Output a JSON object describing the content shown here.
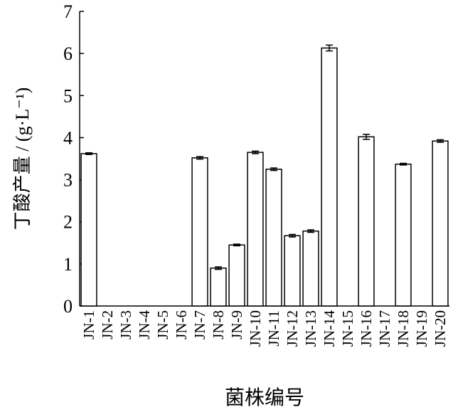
{
  "chart_data": {
    "type": "bar",
    "y_label": "丁酸产量 / (g·L⁻¹)",
    "x_label": "菌株编号",
    "categories": [
      "JN-1",
      "JN-2",
      "JN-3",
      "JN-4",
      "JN-5",
      "JN-6",
      "JN-7",
      "JN-8",
      "JN-9",
      "JN-10",
      "JN-11",
      "JN-12",
      "JN-13",
      "JN-14",
      "JN-15",
      "JN-16",
      "JN-17",
      "JN-18",
      "JN-19",
      "JN-20"
    ],
    "values": [
      3.62,
      0,
      0,
      0,
      0,
      0,
      3.52,
      0.9,
      1.45,
      3.65,
      3.25,
      1.67,
      1.78,
      6.13,
      0,
      4.02,
      0,
      3.37,
      0,
      3.92
    ],
    "errors": [
      0.02,
      0,
      0,
      0,
      0,
      0,
      0.03,
      0.03,
      0.02,
      0.03,
      0.03,
      0.03,
      0.03,
      0.07,
      0,
      0.06,
      0,
      0.02,
      0,
      0.03
    ],
    "color": "#ffffff",
    "ylim": [
      0,
      7
    ],
    "yticks": [
      0,
      1,
      2,
      3,
      4,
      5,
      6,
      7
    ],
    "grid": false
  }
}
